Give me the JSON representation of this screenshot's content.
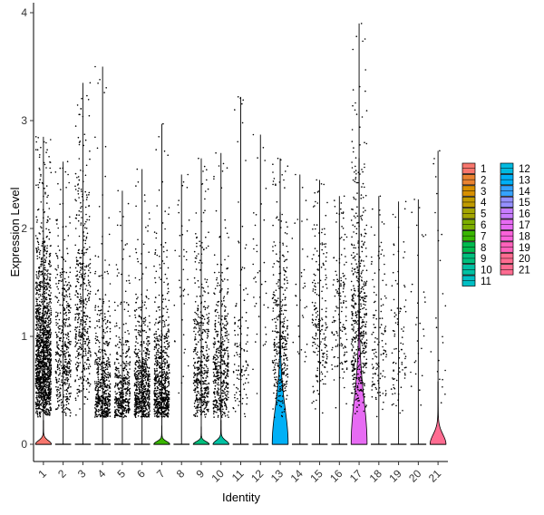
{
  "chart_data": {
    "type": "violin",
    "title": "",
    "xlabel": "Identity",
    "ylabel": "Expression Level",
    "ylim": [
      -0.18,
      4.1
    ],
    "yticks": [
      0,
      1,
      2,
      3,
      4
    ],
    "grid": false,
    "legend_position": "right",
    "legend_columns": 2,
    "categories": [
      "1",
      "2",
      "3",
      "4",
      "5",
      "6",
      "7",
      "8",
      "9",
      "10",
      "11",
      "12",
      "13",
      "14",
      "15",
      "16",
      "17",
      "18",
      "19",
      "20",
      "21"
    ],
    "series": [
      {
        "name": "1",
        "color": "#F8766D",
        "max": 2.85,
        "points": 1500,
        "violin_height": 0.22,
        "violin_width": 0.9,
        "nonzero_median": 0.85
      },
      {
        "name": "2",
        "color": "#EA8331",
        "max": 2.62,
        "points": 450,
        "violin_height": 0.0,
        "violin_width": 0.0,
        "nonzero_median": 0.9
      },
      {
        "name": "3",
        "color": "#D89000",
        "max": 3.35,
        "points": 450,
        "violin_height": 0.0,
        "violin_width": 0.0,
        "nonzero_median": 1.2
      },
      {
        "name": "4",
        "color": "#C09B00",
        "max": 3.5,
        "points": 550,
        "violin_height": 0.0,
        "violin_width": 0.0,
        "nonzero_median": 0.55
      },
      {
        "name": "5",
        "color": "#A3A500",
        "max": 2.35,
        "points": 420,
        "violin_height": 0.0,
        "violin_width": 0.0,
        "nonzero_median": 0.5
      },
      {
        "name": "6",
        "color": "#7CAE00",
        "max": 2.55,
        "points": 650,
        "violin_height": 0.0,
        "violin_width": 0.0,
        "nonzero_median": 0.55
      },
      {
        "name": "7",
        "color": "#39B600",
        "max": 2.97,
        "points": 700,
        "violin_height": 0.17,
        "violin_width": 0.9,
        "nonzero_median": 0.55
      },
      {
        "name": "8",
        "color": "#00BB4E",
        "max": 2.5,
        "points": 40,
        "violin_height": 0.0,
        "violin_width": 0.0,
        "nonzero_median": 1.5
      },
      {
        "name": "9",
        "color": "#00BF7D",
        "max": 2.65,
        "points": 450,
        "violin_height": 0.16,
        "violin_width": 0.9,
        "nonzero_median": 0.7
      },
      {
        "name": "10",
        "color": "#00C1A3",
        "max": 2.7,
        "points": 480,
        "violin_height": 0.22,
        "violin_width": 0.9,
        "nonzero_median": 0.7
      },
      {
        "name": "11",
        "color": "#00BFC4",
        "max": 3.22,
        "points": 120,
        "violin_height": 0.0,
        "violin_width": 0.0,
        "nonzero_median": 0.9
      },
      {
        "name": "12",
        "color": "#00BAE0",
        "max": 2.87,
        "points": 40,
        "violin_height": 0.0,
        "violin_width": 0.0,
        "nonzero_median": 1.5
      },
      {
        "name": "13",
        "color": "#00B0F6",
        "max": 2.65,
        "points": 350,
        "violin_height": 2.15,
        "violin_width": 0.9,
        "nonzero_median": 0.95
      },
      {
        "name": "14",
        "color": "#35A2FF",
        "max": 2.5,
        "points": 35,
        "violin_height": 0.0,
        "violin_width": 0.0,
        "nonzero_median": 1.5
      },
      {
        "name": "15",
        "color": "#9590FF",
        "max": 2.45,
        "points": 200,
        "violin_height": 0.0,
        "violin_width": 0.0,
        "nonzero_median": 1.2
      },
      {
        "name": "16",
        "color": "#C77CFF",
        "max": 2.3,
        "points": 150,
        "violin_height": 0.0,
        "violin_width": 0.0,
        "nonzero_median": 1.2
      },
      {
        "name": "17",
        "color": "#E76BF3",
        "max": 3.9,
        "points": 500,
        "violin_height": 2.65,
        "violin_width": 0.9,
        "nonzero_median": 1.1
      },
      {
        "name": "18",
        "color": "#FA62DB",
        "max": 2.3,
        "points": 130,
        "violin_height": 0.0,
        "violin_width": 0.0,
        "nonzero_median": 0.9
      },
      {
        "name": "19",
        "color": "#FF62BC",
        "max": 2.25,
        "points": 90,
        "violin_height": 0.0,
        "violin_width": 0.0,
        "nonzero_median": 0.9
      },
      {
        "name": "20",
        "color": "#FF6C91",
        "max": 2.27,
        "points": 30,
        "violin_height": 0.0,
        "violin_width": 0.0,
        "nonzero_median": 1.2
      },
      {
        "name": "21",
        "color": "#FF6C91",
        "max": 2.72,
        "points": 25,
        "violin_height": 0.58,
        "violin_width": 0.9,
        "nonzero_median": 1.0
      }
    ]
  }
}
